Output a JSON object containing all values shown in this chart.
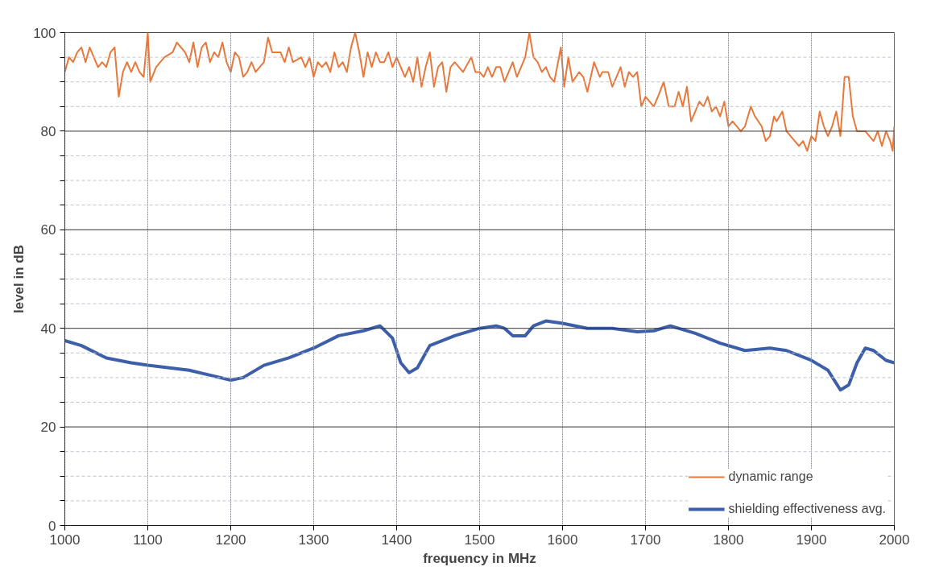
{
  "chart_data": {
    "type": "line",
    "xlabel": "frequency in MHz",
    "ylabel": "level in dB",
    "xlim": [
      1000,
      2000
    ],
    "xticks": [
      1000,
      1100,
      1200,
      1300,
      1400,
      1500,
      1600,
      1700,
      1800,
      1900,
      2000
    ],
    "ylim": [
      0,
      100
    ],
    "yticks": [
      0,
      {
        "value": 5,
        "label": null
      },
      {
        "value": 10,
        "label": null
      },
      {
        "value": 15,
        "label": null
      },
      20,
      {
        "value": 25,
        "label": null
      },
      {
        "value": 30,
        "label": null
      },
      {
        "value": 35,
        "label": null
      },
      40,
      {
        "value": 45,
        "label": null
      },
      {
        "value": 50,
        "label": null
      },
      {
        "value": 55,
        "label": null
      },
      60,
      {
        "value": 65,
        "label": null
      },
      {
        "value": 70,
        "label": null
      },
      {
        "value": 75,
        "label": null
      },
      80,
      {
        "value": 85,
        "label": null
      },
      {
        "value": 90,
        "label": null
      },
      {
        "value": 95,
        "label": null
      },
      100
    ],
    "grid": true,
    "legend": "bottom right",
    "marker": "none",
    "line_style": "solid",
    "series": [
      {
        "name": "dynamic range",
        "color": "#e8783a",
        "x": [
          1000,
          1005,
          1010,
          1015,
          1020,
          1025,
          1030,
          1035,
          1040,
          1045,
          1050,
          1055,
          1060,
          1065,
          1070,
          1075,
          1080,
          1085,
          1090,
          1095,
          1100,
          1103,
          1110,
          1120,
          1130,
          1135,
          1145,
          1150,
          1155,
          1160,
          1165,
          1170,
          1175,
          1180,
          1185,
          1190,
          1195,
          1200,
          1205,
          1210,
          1215,
          1220,
          1225,
          1230,
          1240,
          1245,
          1250,
          1260,
          1265,
          1270,
          1275,
          1285,
          1290,
          1295,
          1300,
          1305,
          1310,
          1315,
          1320,
          1325,
          1330,
          1335,
          1340,
          1345,
          1350,
          1355,
          1360,
          1365,
          1370,
          1375,
          1380,
          1385,
          1390,
          1395,
          1400,
          1405,
          1410,
          1415,
          1420,
          1425,
          1430,
          1435,
          1440,
          1445,
          1450,
          1455,
          1460,
          1465,
          1470,
          1480,
          1490,
          1495,
          1500,
          1505,
          1510,
          1515,
          1520,
          1525,
          1530,
          1535,
          1540,
          1545,
          1550,
          1555,
          1560,
          1565,
          1570,
          1575,
          1580,
          1585,
          1590,
          1598,
          1602,
          1607,
          1612,
          1620,
          1625,
          1630,
          1638,
          1645,
          1648,
          1655,
          1660,
          1670,
          1675,
          1680,
          1685,
          1690,
          1695,
          1700,
          1705,
          1710,
          1715,
          1722,
          1728,
          1735,
          1740,
          1745,
          1750,
          1755,
          1760,
          1765,
          1770,
          1775,
          1780,
          1785,
          1790,
          1795,
          1800,
          1805,
          1810,
          1815,
          1820,
          1827,
          1832,
          1840,
          1845,
          1850,
          1855,
          1858,
          1865,
          1870,
          1875,
          1880,
          1885,
          1890,
          1895,
          1900,
          1905,
          1910,
          1915,
          1920,
          1925,
          1930,
          1935,
          1940,
          1945,
          1950,
          1955,
          1960,
          1965,
          1970,
          1975,
          1980,
          1985,
          1990,
          1995,
          1998,
          2000
        ],
        "values": [
          92,
          95,
          94,
          96,
          97,
          94,
          97,
          95,
          93,
          94,
          93,
          96,
          97,
          87,
          92,
          94,
          92,
          94,
          92,
          91,
          100,
          90,
          93,
          95,
          96,
          98,
          96,
          94,
          98,
          93,
          97,
          98,
          94,
          96,
          95,
          98,
          94,
          92,
          96,
          95,
          91,
          92,
          94,
          92,
          94,
          99,
          96,
          96,
          94,
          97,
          94,
          95,
          93,
          95,
          91,
          94,
          93,
          94,
          92,
          96,
          93,
          94,
          92,
          97,
          100,
          96,
          91,
          96,
          93,
          96,
          94,
          94,
          96,
          93,
          95,
          93,
          91,
          93,
          90,
          95,
          89,
          93,
          96,
          89,
          93,
          94,
          88,
          93,
          94,
          92,
          95,
          92,
          92,
          91,
          93,
          91,
          93,
          93,
          90,
          92,
          94,
          91,
          93,
          95,
          100,
          95,
          94,
          92,
          93,
          91,
          90,
          97,
          89,
          95,
          90,
          92,
          91,
          88,
          94,
          91,
          92,
          92,
          89,
          93,
          89,
          92,
          91,
          92,
          85,
          87,
          86,
          85,
          87,
          90,
          85,
          85,
          88,
          85,
          89,
          82,
          84,
          86,
          85,
          87,
          84,
          85,
          83,
          86,
          81,
          82,
          81,
          80,
          81,
          85,
          83,
          81,
          78,
          79,
          83,
          82,
          84,
          80,
          79,
          78,
          77,
          78,
          76,
          79,
          78,
          84,
          81,
          79,
          81,
          84,
          79,
          91,
          91,
          83,
          80,
          80,
          80,
          79,
          78,
          80,
          77,
          80,
          78,
          76,
          81
        ]
      },
      {
        "name": "shielding effectiveness avg.",
        "color": "#3d5faa",
        "x": [
          1000,
          1020,
          1050,
          1080,
          1100,
          1150,
          1200,
          1215,
          1240,
          1270,
          1300,
          1330,
          1360,
          1380,
          1395,
          1405,
          1415,
          1425,
          1440,
          1470,
          1500,
          1520,
          1530,
          1540,
          1555,
          1565,
          1580,
          1600,
          1630,
          1660,
          1690,
          1710,
          1730,
          1760,
          1790,
          1820,
          1850,
          1870,
          1900,
          1920,
          1935,
          1945,
          1955,
          1965,
          1975,
          1990,
          2000
        ],
        "values": [
          37.5,
          36.5,
          34,
          33,
          32.5,
          31.5,
          29.5,
          30,
          32.5,
          34,
          36,
          38.5,
          39.5,
          40.5,
          38,
          33,
          31,
          32,
          36.5,
          38.5,
          40,
          40.5,
          40,
          38.5,
          38.5,
          40.5,
          41.5,
          41,
          40,
          40,
          39.3,
          39.5,
          40.5,
          39,
          37,
          35.5,
          36,
          35.5,
          33.5,
          31.5,
          27.5,
          28.5,
          33,
          36,
          35.5,
          33.5,
          33
        ]
      }
    ]
  }
}
